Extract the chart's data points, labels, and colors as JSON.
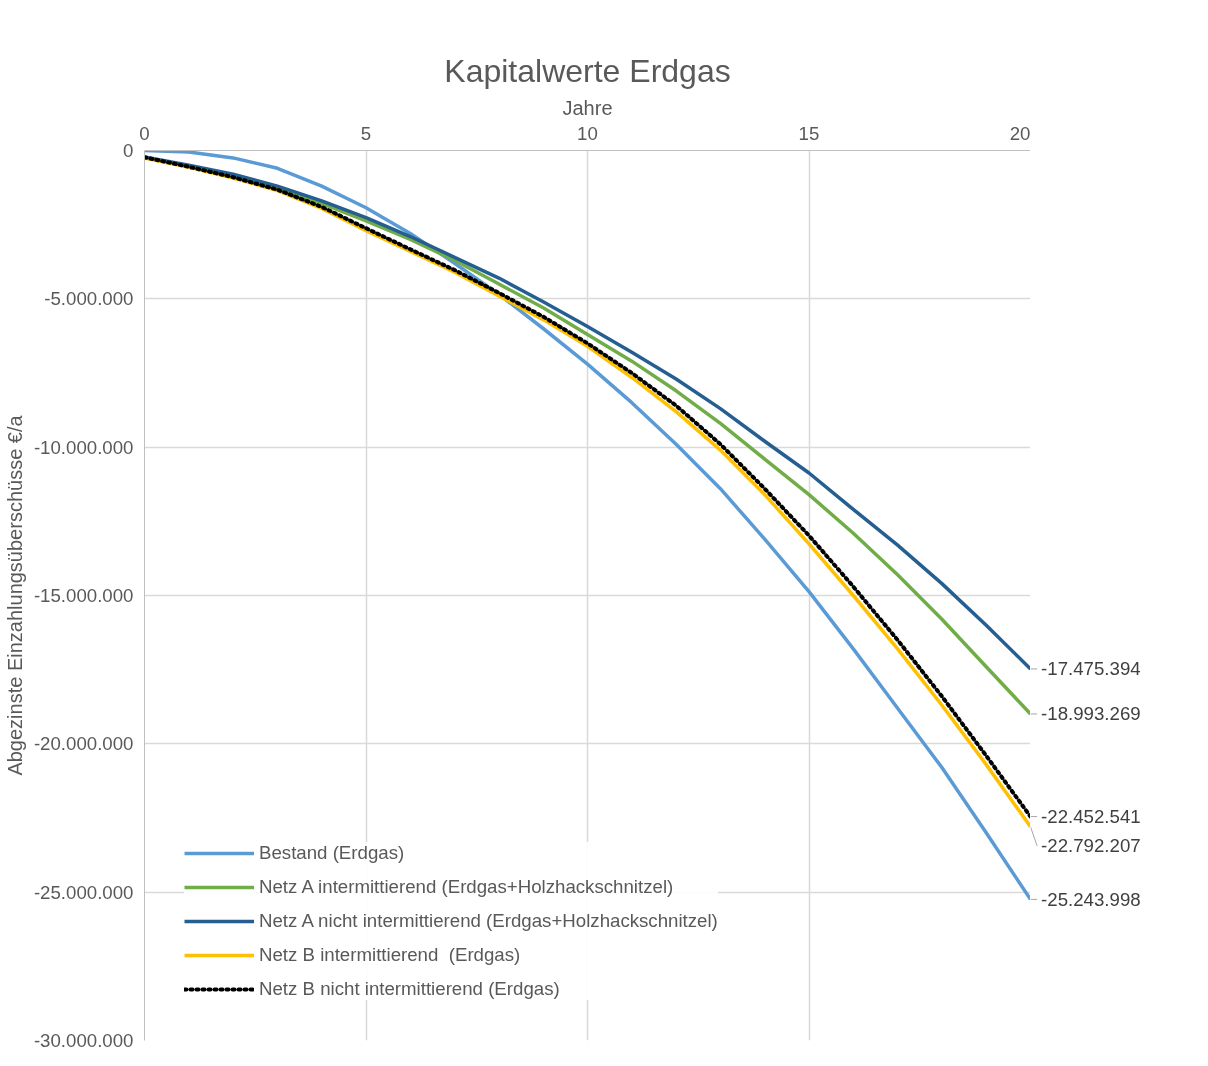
{
  "chart_data": {
    "type": "line",
    "title": "Kapitalwerte Erdgas",
    "xlabel": "Jahre",
    "ylabel": "Abgezinste Einzahlungsüberschüsse €/a",
    "x": [
      0,
      1,
      2,
      3,
      4,
      5,
      6,
      7,
      8,
      9,
      10,
      11,
      12,
      13,
      14,
      15,
      16,
      17,
      18,
      19,
      20
    ],
    "xlim": [
      0,
      20
    ],
    "xticks": [
      0,
      5,
      10,
      15,
      20
    ],
    "ylim": [
      -30000000,
      0
    ],
    "yticks": [
      {
        "value": -30000000,
        "label": "-30.000.000"
      },
      {
        "value": -25000000,
        "label": "-25.000.000"
      },
      {
        "value": -20000000,
        "label": "-20.000.000"
      },
      {
        "value": -15000000,
        "label": "-15.000.000"
      },
      {
        "value": -10000000,
        "label": "-10.000.000"
      },
      {
        "value": -5000000,
        "label": "-5.000.000"
      },
      0
    ],
    "grid": true,
    "legend": "bottom left",
    "series": [
      {
        "name": "Bestand (Erdgas)",
        "color": "#5b9bd5",
        "line_style": "solid",
        "values": [
          0,
          -50000,
          -250000,
          -600000,
          -1200000,
          -1930000,
          -2800000,
          -3800000,
          -4850000,
          -6000000,
          -7200000,
          -8500000,
          -9900000,
          -11400000,
          -13100000,
          -14870000,
          -16800000,
          -18800000,
          -20800000,
          -23000000,
          -25243998
        ],
        "value_labels": [
          null,
          null,
          null,
          null,
          null,
          null,
          null,
          null,
          null,
          null,
          null,
          null,
          null,
          null,
          null,
          null,
          null,
          null,
          null,
          null,
          "-25.243.998"
        ]
      },
      {
        "name": "Netz A intermittierend (Erdgas+Holzhackschnitzel)",
        "color": "#70ad47",
        "line_style": "solid",
        "values": [
          null,
          null,
          -850000,
          -1250000,
          -1780000,
          -2370000,
          -3000000,
          -3700000,
          -4500000,
          -5300000,
          -6200000,
          -7100000,
          -8100000,
          -9200000,
          -10400000,
          -11600000,
          -12900000,
          -14300000,
          -15800000,
          -17400000,
          -18993269
        ],
        "value_labels": [
          null,
          null,
          null,
          null,
          null,
          null,
          null,
          null,
          null,
          null,
          null,
          null,
          null,
          null,
          null,
          null,
          null,
          null,
          null,
          null,
          "-18.993.269"
        ]
      },
      {
        "name": "Netz A nicht intermittierend (Erdgas+Holzhackschnitzel)",
        "color": "#255e91",
        "line_style": "solid",
        "values": [
          -220000,
          -500000,
          -800000,
          -1200000,
          -1700000,
          -2260000,
          -2900000,
          -3600000,
          -4300000,
          -5100000,
          -5930000,
          -6800000,
          -7700000,
          -8700000,
          -9800000,
          -10870000,
          -12100000,
          -13300000,
          -14600000,
          -16000000,
          -17475394
        ],
        "value_labels": [
          null,
          null,
          null,
          null,
          null,
          null,
          null,
          null,
          null,
          null,
          null,
          null,
          null,
          null,
          null,
          null,
          null,
          null,
          null,
          null,
          "-17.475.394"
        ]
      },
      {
        "name": "Netz B intermittierend  (Erdgas)",
        "color": "#ffc000",
        "line_style": "solid",
        "values": [
          -250000,
          -570000,
          -930000,
          -1350000,
          -1950000,
          -2700000,
          -3400000,
          -4100000,
          -4900000,
          -5700000,
          -6600000,
          -7650000,
          -8800000,
          -10100000,
          -11600000,
          -13260000,
          -15000000,
          -16800000,
          -18700000,
          -20700000,
          -22792207
        ],
        "value_labels": [
          null,
          null,
          null,
          null,
          null,
          null,
          null,
          null,
          null,
          null,
          null,
          null,
          null,
          null,
          null,
          null,
          null,
          null,
          null,
          null,
          "-22.792.207"
        ]
      },
      {
        "name": "Netz B nicht intermittierend (Erdgas)",
        "color": "#000000",
        "line_style": "dotted",
        "values": [
          -230000,
          -550000,
          -900000,
          -1320000,
          -1900000,
          -2620000,
          -3330000,
          -4030000,
          -4800000,
          -5600000,
          -6500000,
          -7500000,
          -8600000,
          -9900000,
          -11400000,
          -12980000,
          -14700000,
          -16500000,
          -18400000,
          -20400000,
          -22452541
        ],
        "value_labels": [
          null,
          null,
          null,
          null,
          null,
          null,
          null,
          null,
          null,
          null,
          null,
          null,
          null,
          null,
          null,
          null,
          null,
          null,
          null,
          null,
          "-22.452.541"
        ]
      }
    ]
  }
}
